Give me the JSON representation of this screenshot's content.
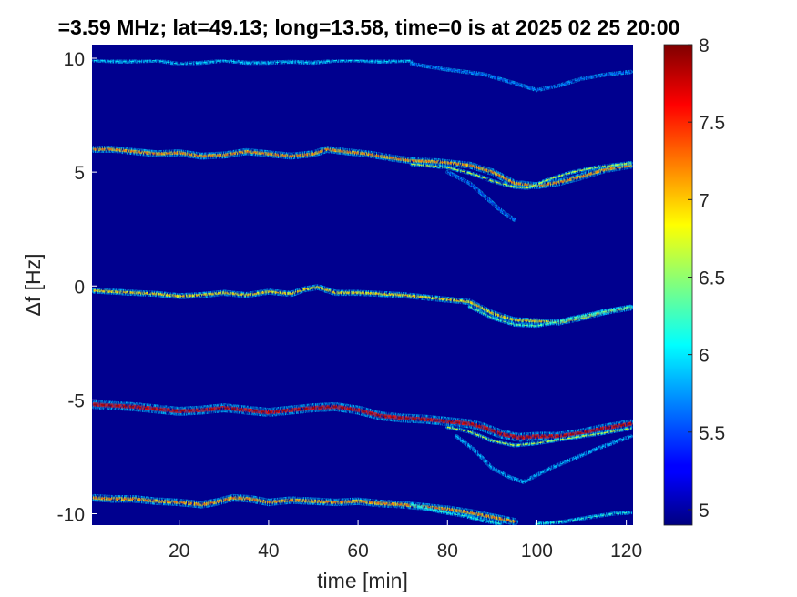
{
  "chart_data": {
    "type": "heatmap",
    "title": "=3.59 MHz;  lat=49.13; long=13.58, time=0 is at 2025 02 25 20:00",
    "xlabel": "time [min]",
    "ylabel": "Δf [Hz]",
    "xlim": [
      0.5,
      121.5
    ],
    "ylim": [
      -10.5,
      10.6
    ],
    "x_ticks": [
      20,
      40,
      60,
      80,
      100,
      120
    ],
    "x_tick_labels": [
      "20",
      "40",
      "60",
      "80",
      "100",
      "120"
    ],
    "y_ticks": [
      10,
      5,
      0,
      -5,
      -10
    ],
    "y_tick_labels": [
      "10",
      "5",
      "0",
      "-5",
      "-10"
    ],
    "colormap": "jet",
    "background_color": "#00008f",
    "colorbar": {
      "range": [
        4.9,
        8
      ],
      "ticks": [
        5,
        5.5,
        6,
        6.5,
        7,
        7.5,
        8
      ],
      "tick_labels": [
        "5",
        "5.5",
        "6",
        "6.5",
        "7",
        "7.5",
        "8"
      ]
    },
    "series": [
      {
        "intensity": 5.8,
        "width_hz": 0.08,
        "points": [
          [
            1,
            9.9
          ],
          [
            8,
            9.85
          ],
          [
            15,
            9.9
          ],
          [
            20,
            9.75
          ],
          [
            25,
            9.8
          ],
          [
            30,
            9.9
          ],
          [
            35,
            9.8
          ],
          [
            40,
            9.8
          ],
          [
            45,
            9.85
          ],
          [
            50,
            9.8
          ],
          [
            55,
            9.9
          ],
          [
            60,
            9.9
          ],
          [
            65,
            9.85
          ],
          [
            72,
            9.9
          ]
        ]
      },
      {
        "intensity": 5.5,
        "width_hz": 0.06,
        "points": [
          [
            72,
            9.75
          ],
          [
            80,
            9.5
          ],
          [
            88,
            9.3
          ],
          [
            95,
            8.9
          ],
          [
            100,
            8.6
          ],
          [
            105,
            8.8
          ],
          [
            110,
            9.1
          ],
          [
            116,
            9.3
          ],
          [
            121,
            9.4
          ]
        ]
      },
      {
        "intensity": 7.0,
        "width_hz": 0.14,
        "points": [
          [
            1,
            6.0
          ],
          [
            5,
            6.0
          ],
          [
            10,
            5.9
          ],
          [
            15,
            5.8
          ],
          [
            20,
            5.85
          ],
          [
            25,
            5.7
          ],
          [
            30,
            5.75
          ],
          [
            35,
            5.9
          ],
          [
            40,
            5.8
          ],
          [
            45,
            5.7
          ],
          [
            50,
            5.8
          ],
          [
            53,
            6.0
          ],
          [
            57,
            5.9
          ],
          [
            62,
            5.8
          ],
          [
            68,
            5.6
          ],
          [
            72,
            5.5
          ],
          [
            78,
            5.45
          ],
          [
            85,
            5.3
          ],
          [
            90,
            5.0
          ],
          [
            95,
            4.5
          ],
          [
            100,
            4.4
          ],
          [
            105,
            4.55
          ],
          [
            110,
            4.8
          ],
          [
            115,
            5.1
          ],
          [
            121,
            5.3
          ]
        ]
      },
      {
        "intensity": 6.5,
        "width_hz": 0.06,
        "points": [
          [
            72,
            5.35
          ],
          [
            80,
            5.2
          ],
          [
            86,
            4.9
          ],
          [
            90,
            4.6
          ],
          [
            95,
            4.35
          ],
          [
            98,
            4.3
          ],
          [
            103,
            4.7
          ],
          [
            108,
            5.0
          ],
          [
            113,
            5.2
          ],
          [
            121,
            5.4
          ]
        ]
      },
      {
        "intensity": 5.4,
        "width_hz": 0.05,
        "points": [
          [
            80,
            5.0
          ],
          [
            85,
            4.5
          ],
          [
            88,
            4.0
          ],
          [
            92,
            3.3
          ],
          [
            95,
            2.9
          ]
        ]
      },
      {
        "intensity": 6.8,
        "width_hz": 0.12,
        "points": [
          [
            1,
            -0.2
          ],
          [
            5,
            -0.25
          ],
          [
            10,
            -0.3
          ],
          [
            15,
            -0.35
          ],
          [
            20,
            -0.45
          ],
          [
            25,
            -0.4
          ],
          [
            30,
            -0.3
          ],
          [
            35,
            -0.4
          ],
          [
            40,
            -0.25
          ],
          [
            45,
            -0.35
          ],
          [
            48,
            -0.15
          ],
          [
            51,
            -0.05
          ],
          [
            55,
            -0.3
          ],
          [
            60,
            -0.3
          ],
          [
            65,
            -0.35
          ],
          [
            70,
            -0.4
          ],
          [
            75,
            -0.5
          ],
          [
            80,
            -0.6
          ],
          [
            85,
            -0.7
          ],
          [
            90,
            -1.2
          ],
          [
            95,
            -1.5
          ],
          [
            100,
            -1.55
          ],
          [
            105,
            -1.6
          ],
          [
            110,
            -1.4
          ],
          [
            115,
            -1.15
          ],
          [
            121,
            -0.95
          ]
        ]
      },
      {
        "intensity": 6.2,
        "width_hz": 0.06,
        "points": [
          [
            85,
            -0.9
          ],
          [
            90,
            -1.4
          ],
          [
            95,
            -1.7
          ],
          [
            100,
            -1.75
          ],
          [
            104,
            -1.6
          ],
          [
            108,
            -1.4
          ],
          [
            113,
            -1.2
          ],
          [
            121,
            -0.9
          ]
        ]
      },
      {
        "intensity": 7.6,
        "width_hz": 0.18,
        "points": [
          [
            1,
            -5.2
          ],
          [
            5,
            -5.25
          ],
          [
            10,
            -5.3
          ],
          [
            15,
            -5.4
          ],
          [
            20,
            -5.5
          ],
          [
            25,
            -5.45
          ],
          [
            30,
            -5.35
          ],
          [
            35,
            -5.45
          ],
          [
            40,
            -5.55
          ],
          [
            45,
            -5.45
          ],
          [
            50,
            -5.35
          ],
          [
            55,
            -5.3
          ],
          [
            60,
            -5.45
          ],
          [
            65,
            -5.7
          ],
          [
            70,
            -5.8
          ],
          [
            75,
            -5.85
          ],
          [
            80,
            -5.95
          ],
          [
            85,
            -6.05
          ],
          [
            88,
            -6.2
          ],
          [
            92,
            -6.5
          ],
          [
            96,
            -6.65
          ],
          [
            100,
            -6.6
          ],
          [
            105,
            -6.6
          ],
          [
            110,
            -6.45
          ],
          [
            115,
            -6.25
          ],
          [
            121,
            -6.05
          ]
        ]
      },
      {
        "intensity": 6.5,
        "width_hz": 0.07,
        "points": [
          [
            80,
            -6.2
          ],
          [
            85,
            -6.4
          ],
          [
            90,
            -6.8
          ],
          [
            95,
            -7.0
          ],
          [
            100,
            -6.9
          ],
          [
            105,
            -6.75
          ],
          [
            110,
            -6.6
          ],
          [
            115,
            -6.45
          ],
          [
            121,
            -6.25
          ]
        ]
      },
      {
        "intensity": 5.7,
        "width_hz": 0.06,
        "points": [
          [
            82,
            -6.6
          ],
          [
            86,
            -7.2
          ],
          [
            90,
            -8.0
          ],
          [
            94,
            -8.4
          ],
          [
            97,
            -8.6
          ],
          [
            100,
            -8.3
          ],
          [
            103,
            -8.0
          ],
          [
            108,
            -7.6
          ],
          [
            114,
            -7.1
          ],
          [
            121,
            -6.6
          ]
        ]
      },
      {
        "intensity": 7.0,
        "width_hz": 0.15,
        "points": [
          [
            1,
            -9.3
          ],
          [
            5,
            -9.35
          ],
          [
            10,
            -9.35
          ],
          [
            15,
            -9.45
          ],
          [
            20,
            -9.5
          ],
          [
            25,
            -9.6
          ],
          [
            28,
            -9.5
          ],
          [
            32,
            -9.3
          ],
          [
            36,
            -9.35
          ],
          [
            40,
            -9.5
          ],
          [
            45,
            -9.4
          ],
          [
            50,
            -9.45
          ],
          [
            55,
            -9.5
          ],
          [
            60,
            -9.45
          ],
          [
            65,
            -9.55
          ],
          [
            70,
            -9.6
          ],
          [
            75,
            -9.7
          ],
          [
            80,
            -9.8
          ],
          [
            85,
            -9.95
          ],
          [
            90,
            -10.15
          ],
          [
            95,
            -10.35
          ]
        ]
      },
      {
        "intensity": 6.0,
        "width_hz": 0.06,
        "points": [
          [
            72,
            -9.6
          ],
          [
            78,
            -9.9
          ],
          [
            84,
            -10.1
          ],
          [
            88,
            -10.3
          ],
          [
            92,
            -10.45
          ]
        ]
      },
      {
        "intensity": 6.0,
        "width_hz": 0.06,
        "points": [
          [
            100,
            -10.45
          ],
          [
            106,
            -10.35
          ],
          [
            112,
            -10.15
          ],
          [
            117,
            -10.0
          ],
          [
            121,
            -9.95
          ]
        ]
      }
    ]
  }
}
